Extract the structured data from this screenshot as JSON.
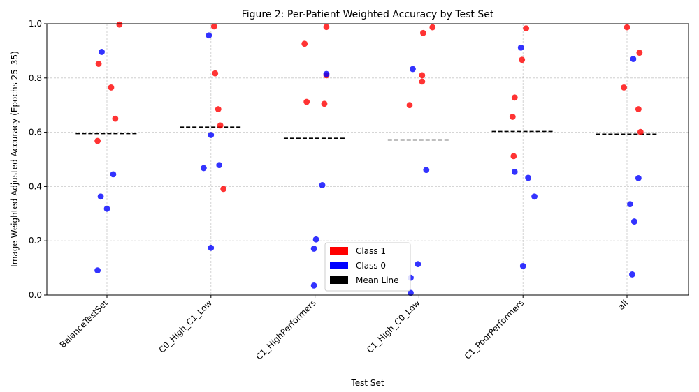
{
  "chart_data": {
    "type": "scatter",
    "title": "Figure 2: Per-Patient Weighted Accuracy by Test Set",
    "xlabel": "Test Set",
    "ylabel": "Image-Weighted Adjusted Accuracy (Epochs 25–35)",
    "categories": [
      "BalanceTestSet",
      "C0_High_C1_Low",
      "C1_HighPerformers",
      "C1_High_C0_Low",
      "C1_PoorPerformers",
      "all"
    ],
    "ylim": [
      0,
      1.0
    ],
    "yticks": [
      "0.0",
      "0.2",
      "0.4",
      "0.6",
      "0.8",
      "1.0"
    ],
    "grid": true,
    "legend_position": "bottom-center",
    "legend": [
      {
        "label": "Class 1",
        "color": "#ff0000"
      },
      {
        "label": "Class 0",
        "color": "#0000ff"
      },
      {
        "label": "Mean Line",
        "color": "#000000"
      }
    ],
    "series": [
      {
        "class": "1",
        "color": "#ff0000",
        "points": [
          {
            "cat": 0,
            "jitter": 0.12,
            "y": 0.997
          },
          {
            "cat": 0,
            "jitter": -0.08,
            "y": 0.852
          },
          {
            "cat": 0,
            "jitter": 0.04,
            "y": 0.765
          },
          {
            "cat": 0,
            "jitter": 0.08,
            "y": 0.65
          },
          {
            "cat": 0,
            "jitter": -0.09,
            "y": 0.568
          },
          {
            "cat": 1,
            "jitter": 0.03,
            "y": 0.99
          },
          {
            "cat": 1,
            "jitter": 0.04,
            "y": 0.817
          },
          {
            "cat": 1,
            "jitter": 0.07,
            "y": 0.685
          },
          {
            "cat": 1,
            "jitter": 0.09,
            "y": 0.625
          },
          {
            "cat": 1,
            "jitter": 0.12,
            "y": 0.391
          },
          {
            "cat": 2,
            "jitter": 0.11,
            "y": 0.988
          },
          {
            "cat": 2,
            "jitter": -0.1,
            "y": 0.926
          },
          {
            "cat": 2,
            "jitter": 0.11,
            "y": 0.81
          },
          {
            "cat": 2,
            "jitter": -0.08,
            "y": 0.712
          },
          {
            "cat": 2,
            "jitter": 0.09,
            "y": 0.705
          },
          {
            "cat": 3,
            "jitter": 0.13,
            "y": 0.987
          },
          {
            "cat": 3,
            "jitter": 0.04,
            "y": 0.966
          },
          {
            "cat": 3,
            "jitter": 0.03,
            "y": 0.81
          },
          {
            "cat": 3,
            "jitter": 0.03,
            "y": 0.787
          },
          {
            "cat": 3,
            "jitter": -0.09,
            "y": 0.7
          },
          {
            "cat": 4,
            "jitter": 0.03,
            "y": 0.983
          },
          {
            "cat": 4,
            "jitter": -0.01,
            "y": 0.867
          },
          {
            "cat": 4,
            "jitter": -0.08,
            "y": 0.728
          },
          {
            "cat": 4,
            "jitter": -0.1,
            "y": 0.657
          },
          {
            "cat": 4,
            "jitter": -0.09,
            "y": 0.512
          },
          {
            "cat": 5,
            "jitter": 0.0,
            "y": 0.987
          },
          {
            "cat": 5,
            "jitter": 0.12,
            "y": 0.893
          },
          {
            "cat": 5,
            "jitter": -0.03,
            "y": 0.765
          },
          {
            "cat": 5,
            "jitter": 0.11,
            "y": 0.685
          },
          {
            "cat": 5,
            "jitter": 0.13,
            "y": 0.601
          }
        ]
      },
      {
        "class": "0",
        "color": "#0000ff",
        "points": [
          {
            "cat": 0,
            "jitter": -0.05,
            "y": 0.896
          },
          {
            "cat": 0,
            "jitter": 0.06,
            "y": 0.445
          },
          {
            "cat": 0,
            "jitter": -0.06,
            "y": 0.363
          },
          {
            "cat": 0,
            "jitter": 0.0,
            "y": 0.318
          },
          {
            "cat": 0,
            "jitter": -0.09,
            "y": 0.091
          },
          {
            "cat": 1,
            "jitter": -0.02,
            "y": 0.957
          },
          {
            "cat": 1,
            "jitter": 0.0,
            "y": 0.59
          },
          {
            "cat": 1,
            "jitter": 0.08,
            "y": 0.479
          },
          {
            "cat": 1,
            "jitter": -0.07,
            "y": 0.468
          },
          {
            "cat": 1,
            "jitter": 0.0,
            "y": 0.174
          },
          {
            "cat": 2,
            "jitter": 0.11,
            "y": 0.815
          },
          {
            "cat": 2,
            "jitter": 0.07,
            "y": 0.405
          },
          {
            "cat": 2,
            "jitter": 0.01,
            "y": 0.205
          },
          {
            "cat": 2,
            "jitter": -0.01,
            "y": 0.171
          },
          {
            "cat": 2,
            "jitter": -0.01,
            "y": 0.035
          },
          {
            "cat": 3,
            "jitter": -0.06,
            "y": 0.833
          },
          {
            "cat": 3,
            "jitter": 0.07,
            "y": 0.461
          },
          {
            "cat": 3,
            "jitter": -0.01,
            "y": 0.114
          },
          {
            "cat": 3,
            "jitter": -0.08,
            "y": 0.064
          },
          {
            "cat": 3,
            "jitter": -0.08,
            "y": 0.008
          },
          {
            "cat": 4,
            "jitter": -0.02,
            "y": 0.912
          },
          {
            "cat": 4,
            "jitter": -0.08,
            "y": 0.454
          },
          {
            "cat": 4,
            "jitter": 0.05,
            "y": 0.432
          },
          {
            "cat": 4,
            "jitter": 0.11,
            "y": 0.363
          },
          {
            "cat": 4,
            "jitter": 0.0,
            "y": 0.107
          },
          {
            "cat": 5,
            "jitter": 0.06,
            "y": 0.87
          },
          {
            "cat": 5,
            "jitter": 0.11,
            "y": 0.431
          },
          {
            "cat": 5,
            "jitter": 0.03,
            "y": 0.335
          },
          {
            "cat": 5,
            "jitter": 0.07,
            "y": 0.271
          },
          {
            "cat": 5,
            "jitter": 0.05,
            "y": 0.076
          }
        ]
      }
    ],
    "means": [
      0.595,
      0.619,
      0.578,
      0.572,
      0.603,
      0.593
    ]
  }
}
